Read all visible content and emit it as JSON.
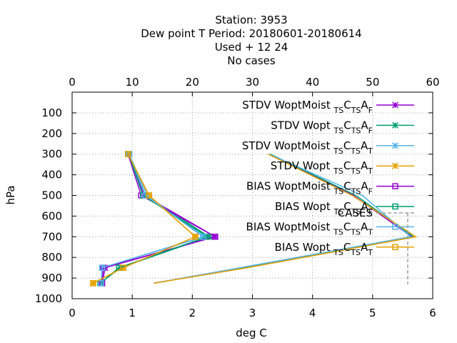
{
  "chart_data": {
    "type": "line",
    "title": [
      "Station:     3953",
      "Dew point T  Period: 20180601-20180614",
      "Used   + 12 24",
      "No cases"
    ],
    "xlabel": "deg C",
    "ylabel": "hPa",
    "xlim": [
      0,
      6
    ],
    "x2lim": [
      0,
      60
    ],
    "ylim": [
      1000,
      0
    ],
    "x_ticks": [
      0,
      1,
      2,
      3,
      4,
      5,
      6
    ],
    "x2_ticks": [
      0,
      10,
      20,
      30,
      40,
      50,
      60
    ],
    "y_ticks": [
      100,
      200,
      300,
      400,
      500,
      600,
      700,
      800,
      900,
      1000
    ],
    "grid": true,
    "legend_position": "top-right",
    "series": [
      {
        "name": "STDV WoptMoist",
        "sub": [
          "TS",
          "TS",
          "F"
        ],
        "color": "#9400d3",
        "marker": "star",
        "points": [
          [
            0.93,
            300
          ],
          [
            1.2,
            500
          ],
          [
            2.38,
            700
          ],
          [
            0.55,
            850
          ],
          [
            0.5,
            925
          ]
        ]
      },
      {
        "name": "STDV Wopt",
        "sub": [
          "TS",
          "TS",
          "F"
        ],
        "color": "#009e73",
        "marker": "star",
        "points": [
          [
            0.94,
            300
          ],
          [
            1.22,
            500
          ],
          [
            2.28,
            700
          ],
          [
            0.8,
            850
          ],
          [
            0.47,
            925
          ]
        ]
      },
      {
        "name": "STDV WoptMoist",
        "sub": [
          "TS",
          "TS",
          "T"
        ],
        "color": "#56b4e9",
        "marker": "star",
        "points": [
          [
            0.95,
            300
          ],
          [
            1.25,
            500
          ],
          [
            2.2,
            700
          ],
          [
            0.5,
            850
          ],
          [
            0.48,
            925
          ]
        ]
      },
      {
        "name": "STDV Wopt",
        "sub": [
          "TS",
          "TS",
          "T"
        ],
        "color": "#e69f00",
        "marker": "star",
        "points": [
          [
            0.93,
            300
          ],
          [
            1.28,
            500
          ],
          [
            2.05,
            700
          ],
          [
            0.85,
            850
          ],
          [
            0.35,
            925
          ]
        ]
      },
      {
        "name": "BIAS WoptMoist",
        "sub": [
          "TS",
          "TS",
          "F"
        ],
        "color": "#9400d3",
        "marker": "square",
        "points": [
          [
            0.93,
            300
          ],
          [
            1.15,
            500
          ],
          [
            2.38,
            700
          ],
          [
            0.52,
            850
          ],
          [
            0.5,
            925
          ]
        ]
      },
      {
        "name": "BIAS Wopt",
        "sub": [
          "TS",
          "TS",
          "F"
        ],
        "color": "#009e73",
        "marker": "square",
        "points": [
          [
            0.94,
            300
          ],
          [
            1.18,
            500
          ],
          [
            2.25,
            700
          ],
          [
            0.78,
            850
          ],
          [
            0.47,
            925
          ]
        ]
      },
      {
        "name": "BIAS WoptMoist",
        "sub": [
          "TS",
          "TS",
          "T"
        ],
        "color": "#56b4e9",
        "marker": "square",
        "points": [
          [
            0.95,
            300
          ],
          [
            1.22,
            500
          ],
          [
            2.18,
            700
          ],
          [
            0.5,
            850
          ],
          [
            0.48,
            925
          ]
        ]
      },
      {
        "name": "BIAS Wopt",
        "sub": [
          "TS",
          "TS",
          "T"
        ],
        "color": "#e69f00",
        "marker": "square",
        "points": [
          [
            0.93,
            300
          ],
          [
            1.28,
            500
          ],
          [
            2.05,
            700
          ],
          [
            0.85,
            850
          ],
          [
            0.35,
            925
          ]
        ]
      }
    ],
    "cases_series": {
      "name": "CASES",
      "color": "#a0a0a0",
      "axis": "x2",
      "groups": [
        {
          "color": "#9400d3",
          "points": [
            [
              32.8,
              300
            ],
            [
              46.8,
              500
            ],
            [
              56.5,
              700
            ],
            [
              28.2,
              850
            ],
            [
              13.6,
              925
            ]
          ]
        },
        {
          "color": "#009e73",
          "points": [
            [
              33.0,
              300
            ],
            [
              47.2,
              500
            ],
            [
              56.8,
              700
            ],
            [
              28.5,
              850
            ],
            [
              13.6,
              925
            ]
          ]
        },
        {
          "color": "#56b4e9",
          "points": [
            [
              32.8,
              300
            ],
            [
              48.3,
              500
            ],
            [
              56.3,
              700
            ],
            [
              28.0,
              850
            ],
            [
              13.6,
              925
            ]
          ]
        },
        {
          "color": "#e69f00",
          "points": [
            [
              32.6,
              300
            ],
            [
              46.6,
              500
            ],
            [
              57.2,
              700
            ],
            [
              29.2,
              850
            ],
            [
              13.6,
              925
            ]
          ]
        }
      ]
    }
  }
}
